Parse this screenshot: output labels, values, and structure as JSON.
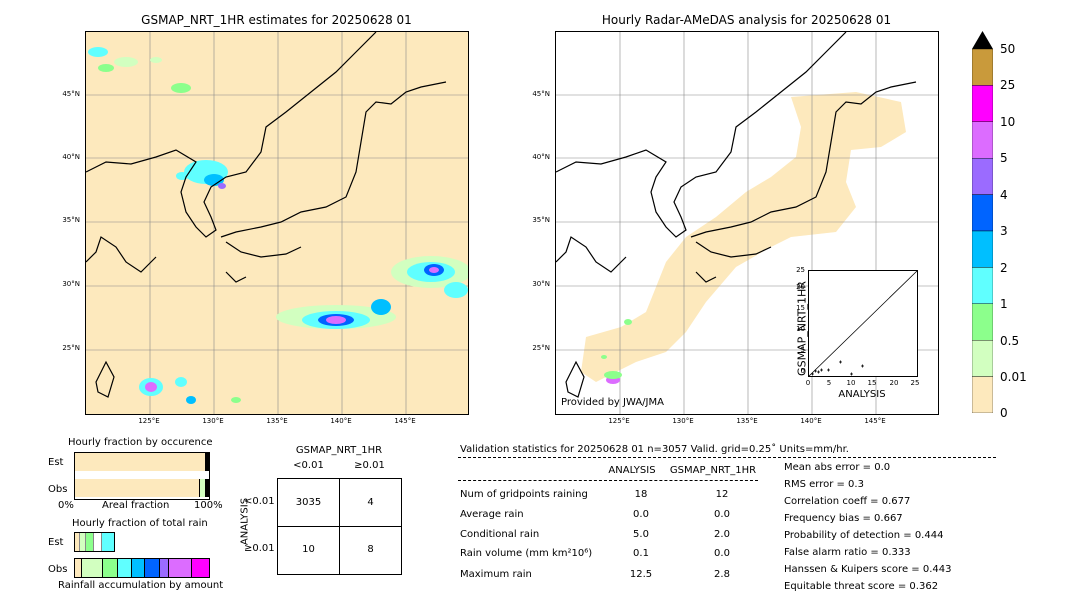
{
  "map_left": {
    "title": "GSMAP_NRT_1HR estimates for 20250628 01",
    "lat_labels": [
      "45°N",
      "40°N",
      "35°N",
      "30°N",
      "25°N"
    ],
    "lon_labels": [
      "125°E",
      "130°E",
      "135°E",
      "140°E",
      "145°E"
    ]
  },
  "map_right": {
    "title": "Hourly Radar-AMeDAS analysis for 20250628 01",
    "lat_labels": [
      "45°N",
      "40°N",
      "35°N",
      "30°N",
      "25°N"
    ],
    "lon_labels": [
      "125°E",
      "130°E",
      "135°E",
      "140°E",
      "145°E"
    ],
    "credit": "Provided by JWA/JMA"
  },
  "scatter": {
    "ylabel": "GSMAP_NRT_1HR",
    "xlabel": "ANALYSIS",
    "ticks": [
      "0",
      "5",
      "10",
      "15",
      "20",
      "25"
    ]
  },
  "colorbar": {
    "labels": [
      "50",
      "25",
      "10",
      "5",
      "4",
      "3",
      "2",
      "1",
      "0.5",
      "0.01",
      "0"
    ],
    "colors": [
      "#c99a3b",
      "#ff00ff",
      "#dc6cff",
      "#9b6bff",
      "#0064ff",
      "#00bfff",
      "#60ffff",
      "#8cff8c",
      "#d2ffc0",
      "#fde9bd"
    ]
  },
  "occurrence": {
    "title": "Hourly fraction by occurence",
    "row_est": "Est",
    "row_obs": "Obs",
    "axis_left": "0%",
    "axis_mid": "Areal fraction",
    "axis_right": "100%"
  },
  "total_rain": {
    "title": "Hourly fraction of total rain",
    "row_est": "Est",
    "row_obs": "Obs",
    "footer": "Rainfall accumulation by amount"
  },
  "contingency": {
    "title": "GSMAP_NRT_1HR",
    "col_lt": "<0.01",
    "col_ge": "≥0.01",
    "row_axis": "ANALYSIS",
    "row_lt": "<0.01",
    "row_ge": "≥0.01",
    "cells": [
      "3035",
      "4",
      "10",
      "8"
    ]
  },
  "validation": {
    "header": "Validation statistics for 20250628 01  n=3057 Valid. grid=0.25˚ Units=mm/hr.",
    "col1": "ANALYSIS",
    "col2": "GSMAP_NRT_1HR",
    "rows": [
      {
        "label": "Num of gridpoints raining",
        "a": "18",
        "g": "12"
      },
      {
        "label": "Average rain",
        "a": "0.0",
        "g": "0.0"
      },
      {
        "label": "Conditional rain",
        "a": "5.0",
        "g": "2.0"
      },
      {
        "label": "Rain volume (mm km²10⁶)",
        "a": "0.1",
        "g": "0.0"
      },
      {
        "label": "Maximum rain",
        "a": "12.5",
        "g": "2.8"
      }
    ],
    "scores": [
      "Mean abs error =    0.0",
      "RMS error =    0.3",
      "Correlation coeff =  0.677",
      "Frequency bias =  0.667",
      "Probability of detection =  0.444",
      "False alarm ratio =  0.333",
      "Hanssen & Kuipers score =  0.443",
      "Equitable threat score =  0.362"
    ]
  }
}
